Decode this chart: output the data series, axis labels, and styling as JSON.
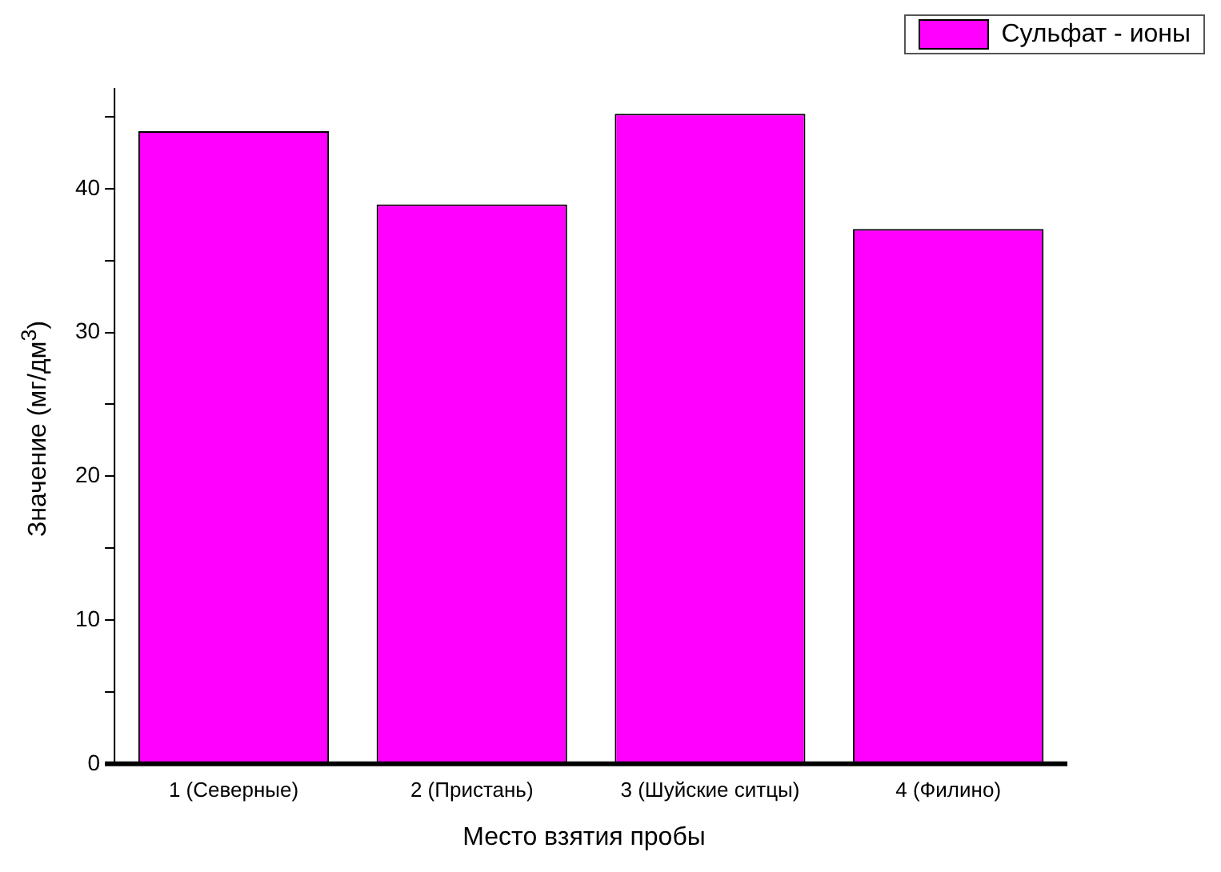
{
  "chart_data": {
    "type": "bar",
    "xlabel": "Место взятия пробы",
    "ylabel": "Значение (мг/дм$^{3}$)",
    "categories": [
      "1 (Северные)",
      "2 (Пристань)",
      "3 (Шуйские ситцы)",
      "4 (Филино)"
    ],
    "series": [
      {
        "name": "Сульфат - ионы",
        "color": "#ff00ff",
        "values": [
          44.0,
          38.9,
          45.2,
          37.2
        ]
      }
    ],
    "ylim": [
      0,
      47
    ],
    "yticks": [
      0,
      {
        "value": 5,
        "label": null
      },
      10,
      {
        "value": 15,
        "label": null
      },
      20,
      {
        "value": 25,
        "label": null
      },
      30,
      {
        "value": 35,
        "label": null
      },
      40,
      {
        "value": 45,
        "label": null
      }
    ],
    "grid": false,
    "legend": "top right"
  }
}
